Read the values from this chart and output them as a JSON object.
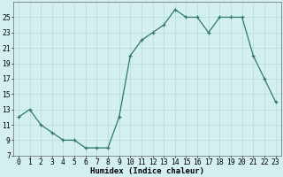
{
  "x": [
    0,
    1,
    2,
    3,
    4,
    5,
    6,
    7,
    8,
    9,
    10,
    11,
    12,
    13,
    14,
    15,
    16,
    17,
    18,
    19,
    20,
    21,
    22,
    23
  ],
  "y": [
    12,
    13,
    11,
    10,
    9,
    9,
    8,
    8,
    8,
    12,
    20,
    22,
    23,
    24,
    26,
    25,
    25,
    23,
    25,
    25,
    25,
    20,
    17,
    14
  ],
  "xlabel": "Humidex (Indice chaleur)",
  "ylim": [
    7,
    27
  ],
  "xlim": [
    -0.5,
    23.5
  ],
  "yticks": [
    7,
    9,
    11,
    13,
    15,
    17,
    19,
    21,
    23,
    25
  ],
  "xticks": [
    0,
    1,
    2,
    3,
    4,
    5,
    6,
    7,
    8,
    9,
    10,
    11,
    12,
    13,
    14,
    15,
    16,
    17,
    18,
    19,
    20,
    21,
    22,
    23
  ],
  "line_color": "#2d7a6a",
  "marker": "+",
  "bg_color": "#d4efef",
  "grid_color": "#b8dada",
  "axis_label_fontsize": 6.5,
  "tick_fontsize": 5.8,
  "linewidth": 0.9,
  "markersize": 3.5,
  "markeredgewidth": 0.9
}
